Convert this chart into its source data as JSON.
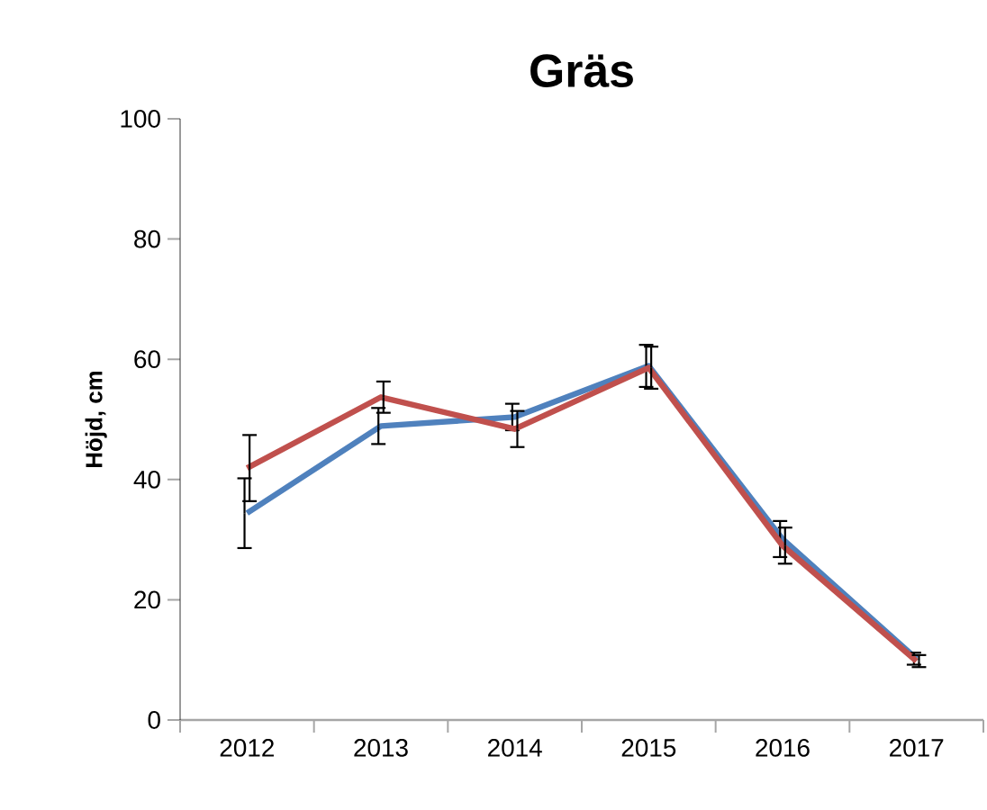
{
  "chart_data": {
    "type": "line",
    "title": "Gräs",
    "ylabel": "Höjd, cm",
    "categories": [
      "2012",
      "2013",
      "2014",
      "2015",
      "2016",
      "2017"
    ],
    "series": [
      {
        "color": "#4f81bd",
        "values": [
          34.4,
          48.9,
          50.4,
          58.9,
          30.1,
          10.2
        ],
        "errors": [
          5.8,
          3,
          2.2,
          3.5,
          3,
          1
        ]
      },
      {
        "color": "#c0504d",
        "values": [
          41.9,
          53.7,
          48.4,
          58.6,
          29,
          9.8
        ],
        "errors": [
          5.5,
          2.6,
          3,
          3.5,
          3,
          1
        ]
      }
    ],
    "ylim": [
      0,
      100
    ],
    "yticks": [
      0,
      20,
      40,
      60,
      80,
      100
    ],
    "grid": false,
    "marker": "none",
    "line_style": "solid"
  }
}
